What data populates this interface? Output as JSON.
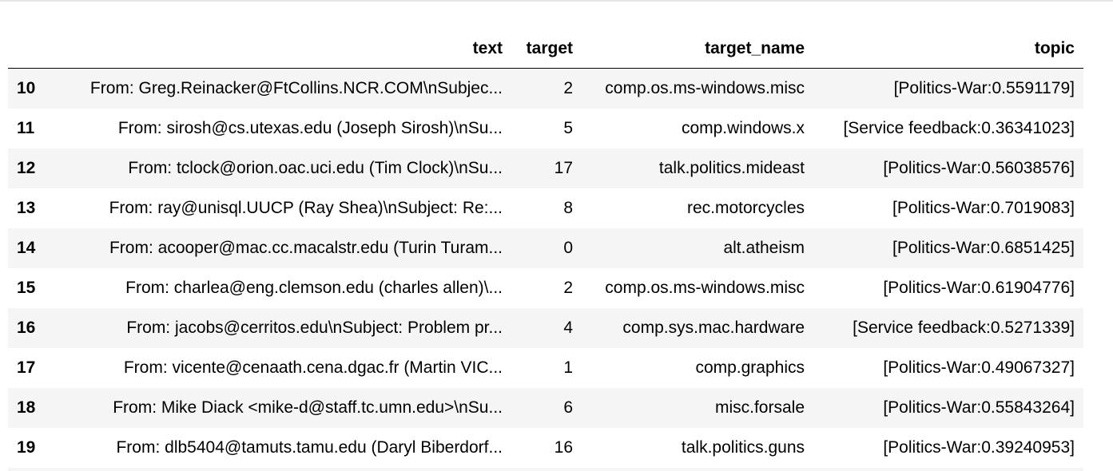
{
  "table": {
    "columns": [
      "",
      "text",
      "target",
      "target_name",
      "topic"
    ],
    "rows": [
      {
        "index": "10",
        "text": "From: Greg.Reinacker@FtCollins.NCR.COM\\nSubjec...",
        "target": "2",
        "target_name": "comp.os.ms-windows.misc",
        "topic": "[Politics-War:0.5591179]"
      },
      {
        "index": "11",
        "text": "From: sirosh@cs.utexas.edu (Joseph Sirosh)\\nSu...",
        "target": "5",
        "target_name": "comp.windows.x",
        "topic": "[Service feedback:0.36341023]"
      },
      {
        "index": "12",
        "text": "From: tclock@orion.oac.uci.edu (Tim Clock)\\nSu...",
        "target": "17",
        "target_name": "talk.politics.mideast",
        "topic": "[Politics-War:0.56038576]"
      },
      {
        "index": "13",
        "text": "From: ray@unisql.UUCP (Ray Shea)\\nSubject: Re:...",
        "target": "8",
        "target_name": "rec.motorcycles",
        "topic": "[Politics-War:0.7019083]"
      },
      {
        "index": "14",
        "text": "From: acooper@mac.cc.macalstr.edu (Turin Turam...",
        "target": "0",
        "target_name": "alt.atheism",
        "topic": "[Politics-War:0.6851425]"
      },
      {
        "index": "15",
        "text": "From: charlea@eng.clemson.edu (charles allen)\\...",
        "target": "2",
        "target_name": "comp.os.ms-windows.misc",
        "topic": "[Politics-War:0.61904776]"
      },
      {
        "index": "16",
        "text": "From: jacobs@cerritos.edu\\nSubject: Problem pr...",
        "target": "4",
        "target_name": "comp.sys.mac.hardware",
        "topic": "[Service feedback:0.5271339]"
      },
      {
        "index": "17",
        "text": "From: vicente@cenaath.cena.dgac.fr (Martin VIC...",
        "target": "1",
        "target_name": "comp.graphics",
        "topic": "[Politics-War:0.49067327]"
      },
      {
        "index": "18",
        "text": "From: Mike Diack <mike-d@staff.tc.umn.edu>\\nSu...",
        "target": "6",
        "target_name": "misc.forsale",
        "topic": "[Politics-War:0.55843264]"
      },
      {
        "index": "19",
        "text": "From: dlb5404@tamuts.tamu.edu (Daryl Biberdorf...",
        "target": "16",
        "target_name": "talk.politics.guns",
        "topic": "[Politics-War:0.39240953]"
      }
    ]
  }
}
